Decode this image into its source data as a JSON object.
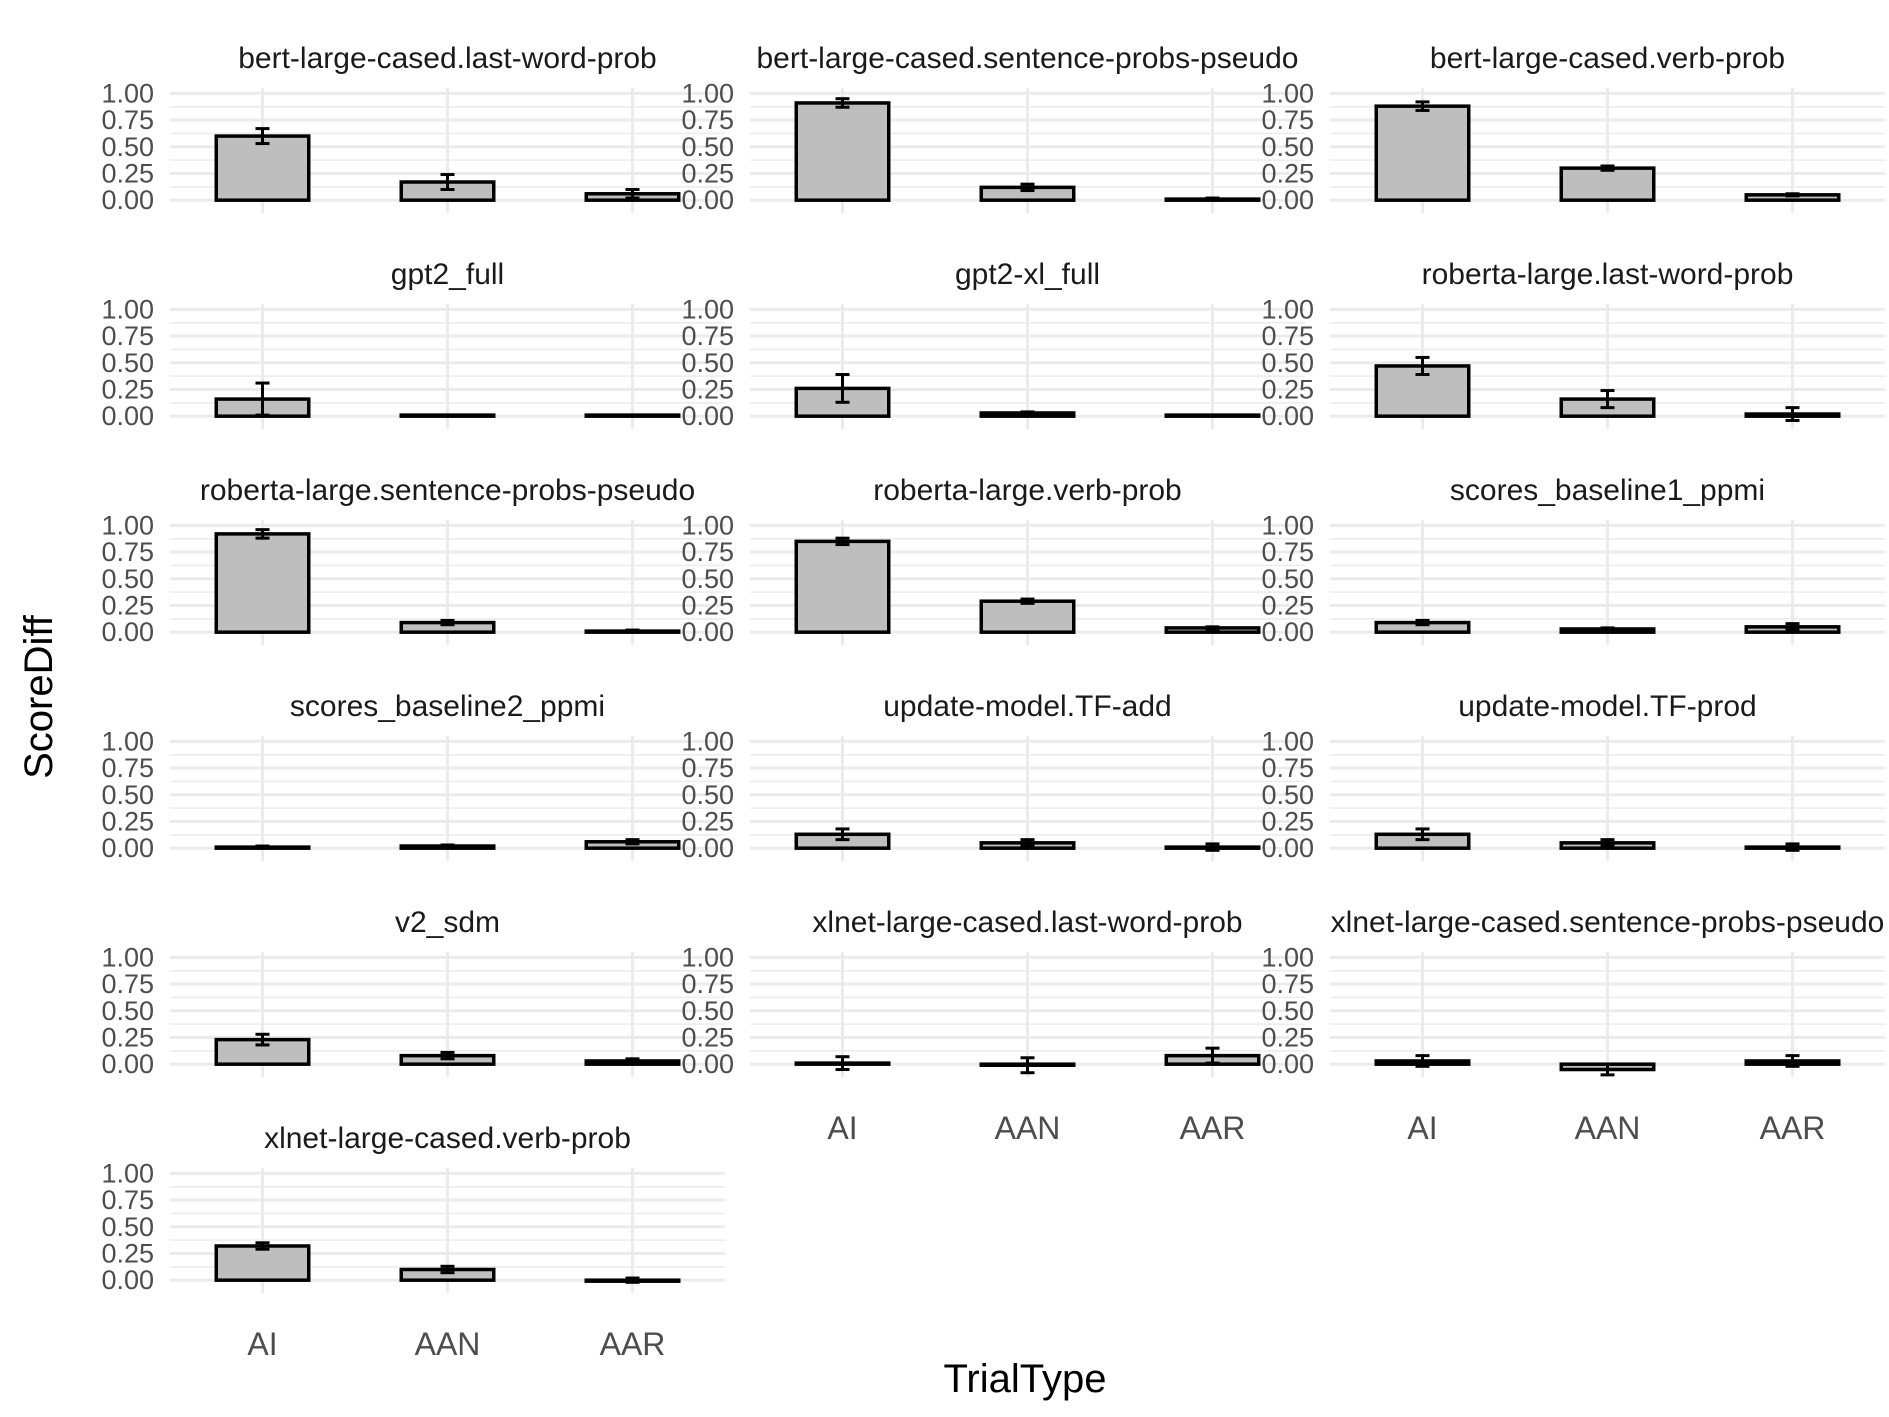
{
  "chart_data": {
    "type": "bar",
    "xlabel": "TrialType",
    "ylabel": "ScoreDiff",
    "categories": [
      "AI",
      "AAN",
      "AAR"
    ],
    "yticks": [
      "0.00",
      "0.25",
      "0.50",
      "0.75",
      "1.00"
    ],
    "ylim": [
      -0.12,
      1.05
    ],
    "grid": true,
    "colors": {
      "bar_fill": "#bebebe",
      "bar_stroke": "#000000",
      "grid": "#ebebeb",
      "error_bar": "#000000"
    },
    "panels": [
      {
        "name": "bert-large-cased.last-word-prob",
        "values": [
          0.6,
          0.17,
          0.06
        ],
        "error": [
          0.07,
          0.07,
          0.04
        ]
      },
      {
        "name": "bert-large-cased.sentence-probs-pseudo",
        "values": [
          0.91,
          0.12,
          0.01
        ],
        "error": [
          0.04,
          0.03,
          0.01
        ]
      },
      {
        "name": "bert-large-cased.verb-prob",
        "values": [
          0.88,
          0.3,
          0.05
        ],
        "error": [
          0.04,
          0.02,
          0.01
        ]
      },
      {
        "name": "gpt2_full",
        "values": [
          0.16,
          0.01,
          0.01
        ],
        "error": [
          0.15,
          0.0,
          0.0
        ]
      },
      {
        "name": "gpt2-xl_full",
        "values": [
          0.26,
          0.03,
          0.01
        ],
        "error": [
          0.13,
          0.01,
          0.0
        ]
      },
      {
        "name": "roberta-large.last-word-prob",
        "values": [
          0.47,
          0.16,
          0.02
        ],
        "error": [
          0.08,
          0.08,
          0.06
        ]
      },
      {
        "name": "roberta-large.sentence-probs-pseudo",
        "values": [
          0.92,
          0.09,
          0.01
        ],
        "error": [
          0.04,
          0.02,
          0.01
        ]
      },
      {
        "name": "roberta-large.verb-prob",
        "values": [
          0.85,
          0.29,
          0.04
        ],
        "error": [
          0.03,
          0.02,
          0.01
        ]
      },
      {
        "name": "scores_baseline1_ppmi",
        "values": [
          0.09,
          0.03,
          0.05
        ],
        "error": [
          0.02,
          0.01,
          0.03
        ]
      },
      {
        "name": "scores_baseline2_ppmi",
        "values": [
          0.01,
          0.02,
          0.06
        ],
        "error": [
          0.01,
          0.01,
          0.02
        ]
      },
      {
        "name": "update-model.TF-add",
        "values": [
          0.13,
          0.05,
          0.01
        ],
        "error": [
          0.05,
          0.03,
          0.03
        ]
      },
      {
        "name": "update-model.TF-prod",
        "values": [
          0.13,
          0.05,
          0.01
        ],
        "error": [
          0.05,
          0.03,
          0.03
        ]
      },
      {
        "name": "v2_sdm",
        "values": [
          0.23,
          0.08,
          0.03
        ],
        "error": [
          0.05,
          0.03,
          0.02
        ]
      },
      {
        "name": "xlnet-large-cased.last-word-prob",
        "values": [
          0.01,
          -0.01,
          0.08
        ],
        "error": [
          0.06,
          0.07,
          0.07
        ]
      },
      {
        "name": "xlnet-large-cased.sentence-probs-pseudo",
        "values": [
          0.03,
          -0.05,
          0.03
        ],
        "error": [
          0.05,
          0.05,
          0.05
        ]
      },
      {
        "name": "xlnet-large-cased.verb-prob",
        "values": [
          0.32,
          0.1,
          0.0
        ],
        "error": [
          0.03,
          0.03,
          0.02
        ]
      }
    ]
  }
}
